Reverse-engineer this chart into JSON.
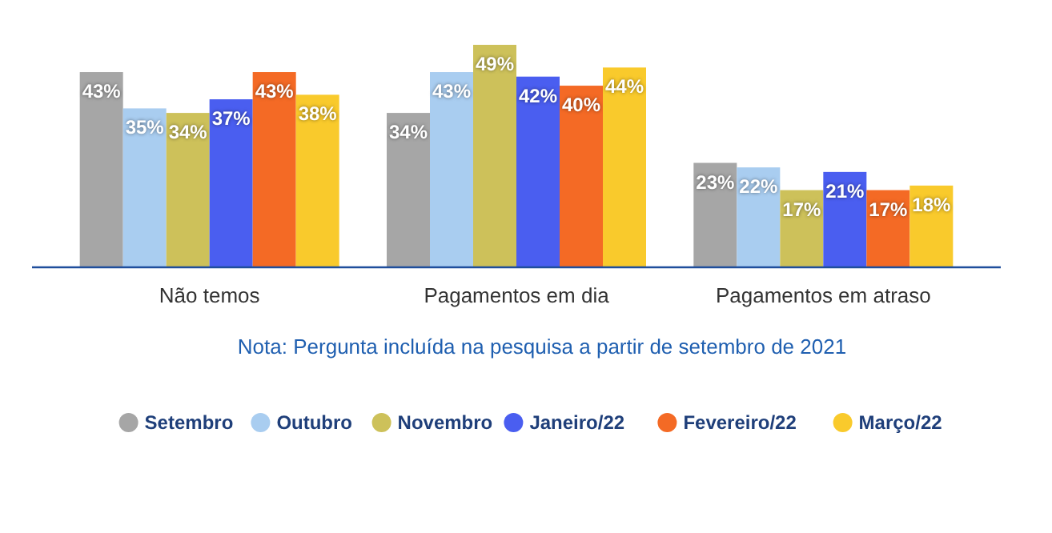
{
  "chart_data": {
    "type": "bar",
    "categories": [
      "Não temos",
      "Pagamentos em dia",
      "Pagamentos em atraso"
    ],
    "series": [
      {
        "name": "Setembro",
        "color": "#a6a6a6",
        "values": [
          43,
          34,
          23
        ],
        "value_labels": [
          "43%",
          "34%",
          "23%"
        ]
      },
      {
        "name": "Outubro",
        "color": "#a9cdf0",
        "values": [
          35,
          43,
          22
        ],
        "value_labels": [
          "35%",
          "43%",
          "22%"
        ]
      },
      {
        "name": "Novembro",
        "color": "#cdc15a",
        "values": [
          34,
          49,
          17
        ],
        "value_labels": [
          "34%",
          "49%",
          "17%"
        ]
      },
      {
        "name": "Janeiro/22",
        "color": "#4a5ef0",
        "values": [
          37,
          42,
          21
        ],
        "value_labels": [
          "37%",
          "42%",
          "21%"
        ]
      },
      {
        "name": "Fevereiro/22",
        "color": "#f46a25",
        "values": [
          43,
          40,
          17
        ],
        "value_labels": [
          "43%",
          "40%",
          "17%"
        ]
      },
      {
        "name": "Março/22",
        "color": "#f9ca2c",
        "values": [
          38,
          44,
          18
        ],
        "value_labels": [
          "38%",
          "44%",
          "18%"
        ]
      }
    ],
    "annotations": [
      "Nota: Pergunta incluída na pesquisa a partir de setembro de 2021"
    ],
    "legend": "bottom"
  }
}
